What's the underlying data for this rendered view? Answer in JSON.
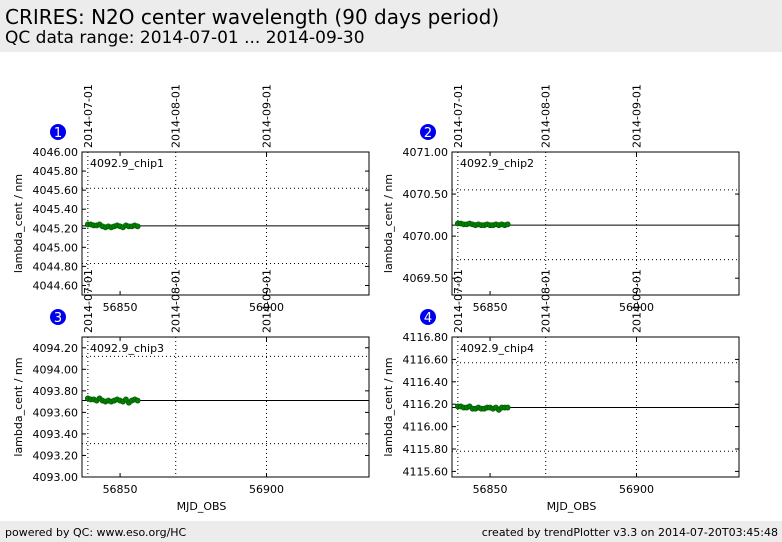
{
  "header": {
    "title": "CRIRES: N2O center wavelength (90 days period)",
    "subtitle": "QC data range: 2014-07-01 ... 2014-09-30"
  },
  "footer": {
    "left": "powered by QC: www.eso.org/HC",
    "right": "created by trendPlotter v3.3 on 2014-07-20T03:45:48"
  },
  "chart_data": [
    {
      "type": "scatter",
      "panel": "1",
      "label": "4092.9_chip1",
      "xlabel": "",
      "ylabel": "lambda_cent / nm",
      "xlim": [
        56837,
        56935
      ],
      "ylim": [
        4044.5,
        4046.0
      ],
      "xticks": [
        56850,
        56900
      ],
      "yticks": [
        4044.6,
        4044.8,
        4045.0,
        4045.2,
        4045.4,
        4045.6,
        4045.8,
        4046.0
      ],
      "ytick_labels": [
        "4044.60",
        "4044.80",
        "4045.00",
        "4045.20",
        "4045.40",
        "4045.60",
        "4045.80",
        "4046.00"
      ],
      "date_lines": [
        {
          "x": 56839,
          "label": "2014-07-01"
        },
        {
          "x": 56869,
          "label": "2014-08-01"
        },
        {
          "x": 56900,
          "label": "2014-09-01"
        }
      ],
      "mean": 4045.225,
      "limits": [
        4044.83,
        4045.62
      ],
      "series": [
        {
          "color": "#008000",
          "x": [
            56839,
            56840,
            56841,
            56842,
            56843,
            56844,
            56845,
            56846,
            56847,
            56848,
            56849,
            56850,
            56851,
            56852,
            56853,
            56854,
            56855,
            56856
          ],
          "y": [
            4045.24,
            4045.24,
            4045.23,
            4045.23,
            4045.24,
            4045.22,
            4045.21,
            4045.22,
            4045.21,
            4045.22,
            4045.23,
            4045.22,
            4045.21,
            4045.23,
            4045.22,
            4045.22,
            4045.23,
            4045.22
          ]
        }
      ]
    },
    {
      "type": "scatter",
      "panel": "2",
      "label": "4092.9_chip2",
      "xlabel": "",
      "ylabel": "lambda_cent / nm",
      "xlim": [
        56837,
        56935
      ],
      "ylim": [
        4069.3,
        4071.0
      ],
      "xticks": [
        56850,
        56900
      ],
      "yticks": [
        4069.5,
        4070.0,
        4070.5,
        4071.0
      ],
      "ytick_labels": [
        "4069.50",
        "4070.00",
        "4070.50",
        "4071.00"
      ],
      "date_lines": [
        {
          "x": 56839,
          "label": "2014-07-01"
        },
        {
          "x": 56869,
          "label": "2014-08-01"
        },
        {
          "x": 56900,
          "label": "2014-09-01"
        }
      ],
      "mean": 4070.13,
      "limits": [
        4069.72,
        4070.55
      ],
      "series": [
        {
          "color": "#008000",
          "x": [
            56839,
            56840,
            56841,
            56842,
            56843,
            56844,
            56845,
            56846,
            56847,
            56848,
            56849,
            56850,
            56851,
            56852,
            56853,
            56854,
            56855,
            56856
          ],
          "y": [
            4070.15,
            4070.15,
            4070.14,
            4070.14,
            4070.15,
            4070.14,
            4070.13,
            4070.14,
            4070.13,
            4070.13,
            4070.14,
            4070.13,
            4070.13,
            4070.14,
            4070.13,
            4070.14,
            4070.13,
            4070.14
          ]
        }
      ]
    },
    {
      "type": "scatter",
      "panel": "3",
      "label": "4092.9_chip3",
      "xlabel": "MJD_OBS",
      "ylabel": "lambda_cent / nm",
      "xlim": [
        56837,
        56935
      ],
      "ylim": [
        4093.0,
        4094.3
      ],
      "xticks": [
        56850,
        56900
      ],
      "yticks": [
        4093.0,
        4093.2,
        4093.4,
        4093.6,
        4093.8,
        4094.0,
        4094.2
      ],
      "ytick_labels": [
        "4093.00",
        "4093.20",
        "4093.40",
        "4093.60",
        "4093.80",
        "4094.00",
        "4094.20"
      ],
      "date_lines": [
        {
          "x": 56839,
          "label": "2014-07-01"
        },
        {
          "x": 56869,
          "label": "2014-08-01"
        },
        {
          "x": 56900,
          "label": "2014-09-01"
        }
      ],
      "mean": 4093.71,
      "limits": [
        4093.31,
        4094.12
      ],
      "series": [
        {
          "color": "#008000",
          "x": [
            56839,
            56840,
            56841,
            56842,
            56843,
            56844,
            56845,
            56846,
            56847,
            56848,
            56849,
            56850,
            56851,
            56852,
            56853,
            56854,
            56855,
            56856
          ],
          "y": [
            4093.73,
            4093.72,
            4093.72,
            4093.71,
            4093.73,
            4093.71,
            4093.7,
            4093.71,
            4093.7,
            4093.71,
            4093.72,
            4093.71,
            4093.7,
            4093.72,
            4093.69,
            4093.71,
            4093.72,
            4093.71
          ]
        }
      ]
    },
    {
      "type": "scatter",
      "panel": "4",
      "label": "4092.9_chip4",
      "xlabel": "MJD_OBS",
      "ylabel": "lambda_cent / nm",
      "xlim": [
        56837,
        56935
      ],
      "ylim": [
        4115.55,
        4116.8
      ],
      "xticks": [
        56850,
        56900
      ],
      "yticks": [
        4115.6,
        4115.8,
        4116.0,
        4116.2,
        4116.4,
        4116.6,
        4116.8
      ],
      "ytick_labels": [
        "4115.60",
        "4115.80",
        "4116.00",
        "4116.20",
        "4116.40",
        "4116.60",
        "4116.80"
      ],
      "date_lines": [
        {
          "x": 56839,
          "label": "2014-07-01"
        },
        {
          "x": 56869,
          "label": "2014-08-01"
        },
        {
          "x": 56900,
          "label": "2014-09-01"
        }
      ],
      "mean": 4116.17,
      "limits": [
        4115.78,
        4116.57
      ],
      "series": [
        {
          "color": "#008000",
          "x": [
            56839,
            56840,
            56841,
            56842,
            56843,
            56844,
            56845,
            56846,
            56847,
            56848,
            56849,
            56850,
            56851,
            56852,
            56853,
            56854,
            56855,
            56856
          ],
          "y": [
            4116.18,
            4116.18,
            4116.17,
            4116.17,
            4116.18,
            4116.16,
            4116.16,
            4116.17,
            4116.16,
            4116.16,
            4116.17,
            4116.17,
            4116.16,
            4116.17,
            4116.15,
            4116.17,
            4116.17,
            4116.17
          ]
        }
      ]
    }
  ]
}
